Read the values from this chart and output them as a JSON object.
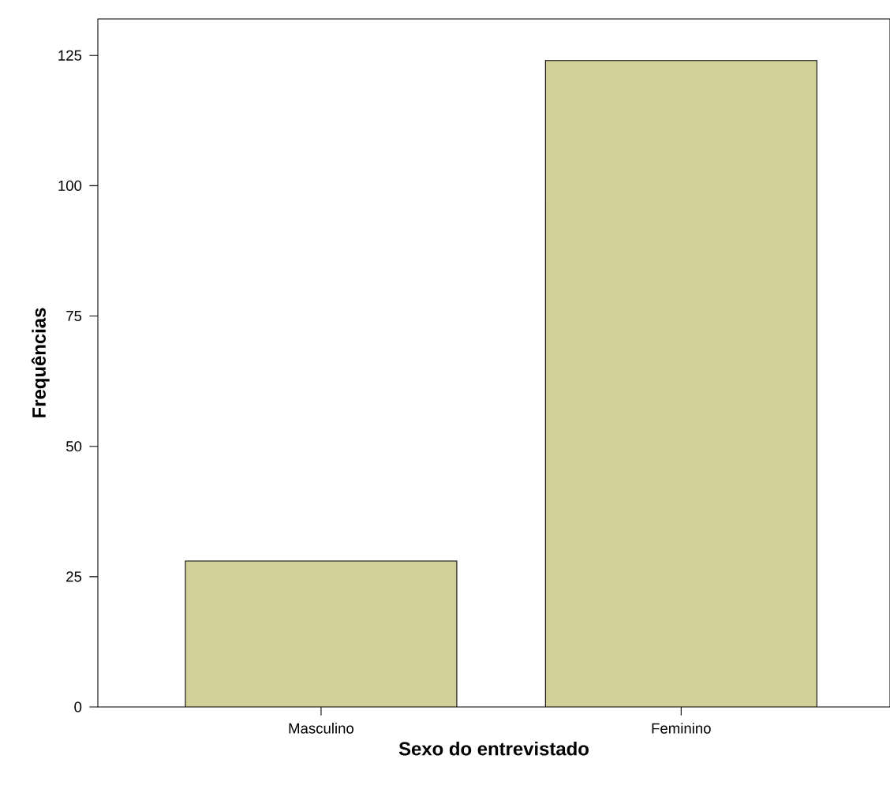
{
  "chart_data": {
    "type": "bar",
    "xlabel": "Sexo do entrevistado",
    "ylabel": "Frequências",
    "categories": [
      "Masculino",
      "Feminino"
    ],
    "values": [
      28,
      124
    ],
    "color": "#d3cf98",
    "ylim": [
      0,
      132
    ],
    "yticks": [
      0,
      25,
      50,
      75,
      100,
      125
    ],
    "grid": false
  }
}
